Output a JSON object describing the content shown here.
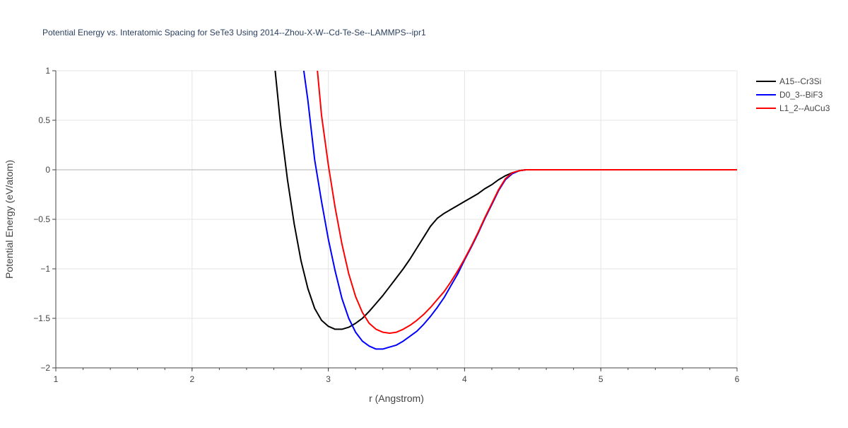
{
  "chart_data": {
    "type": "line",
    "title": "Potential Energy vs. Interatomic Spacing for SeTe3 Using 2014--Zhou-X-W--Cd-Te-Se--LAMMPS--ipr1",
    "xlabel": "r (Angstrom)",
    "ylabel": "Potential Energy (eV/atom)",
    "xlim": [
      1,
      6
    ],
    "ylim": [
      -2,
      1
    ],
    "x_ticks": [
      "1",
      "2",
      "3",
      "4",
      "5",
      "6"
    ],
    "y_ticks": [
      "1",
      "0.5",
      "0",
      "−0.5",
      "−1",
      "−1.5",
      "−2"
    ],
    "grid": true,
    "legend_position": "top-right",
    "series": [
      {
        "name": "A15--Cr3Si",
        "color": "#000000",
        "x": [
          2.61,
          2.65,
          2.7,
          2.75,
          2.8,
          2.85,
          2.9,
          2.95,
          3.0,
          3.05,
          3.1,
          3.15,
          3.2,
          3.25,
          3.3,
          3.35,
          3.4,
          3.45,
          3.5,
          3.55,
          3.6,
          3.65,
          3.7,
          3.75,
          3.8,
          3.85,
          3.9,
          3.95,
          4.0,
          4.05,
          4.1,
          4.15,
          4.2,
          4.25,
          4.3,
          4.35,
          4.4,
          4.45,
          4.5,
          5.0,
          5.5,
          6.0
        ],
        "y": [
          1.0,
          0.45,
          -0.1,
          -0.55,
          -0.92,
          -1.2,
          -1.4,
          -1.52,
          -1.58,
          -1.61,
          -1.61,
          -1.59,
          -1.55,
          -1.5,
          -1.43,
          -1.35,
          -1.27,
          -1.18,
          -1.09,
          -1.0,
          -0.9,
          -0.79,
          -0.68,
          -0.57,
          -0.49,
          -0.44,
          -0.4,
          -0.36,
          -0.32,
          -0.28,
          -0.24,
          -0.19,
          -0.15,
          -0.1,
          -0.06,
          -0.03,
          -0.01,
          0.0,
          0.0,
          0.0,
          0.0,
          0.0
        ]
      },
      {
        "name": "D0_3--BiF3",
        "color": "#0000ff",
        "x": [
          2.82,
          2.85,
          2.9,
          2.95,
          3.0,
          3.05,
          3.1,
          3.15,
          3.2,
          3.25,
          3.3,
          3.35,
          3.4,
          3.45,
          3.5,
          3.55,
          3.6,
          3.65,
          3.7,
          3.75,
          3.8,
          3.85,
          3.9,
          3.95,
          4.0,
          4.05,
          4.1,
          4.15,
          4.2,
          4.25,
          4.3,
          4.35,
          4.4,
          4.45,
          4.5,
          5.0,
          5.5,
          6.0
        ],
        "y": [
          1.0,
          0.7,
          0.1,
          -0.32,
          -0.7,
          -1.02,
          -1.3,
          -1.5,
          -1.64,
          -1.73,
          -1.78,
          -1.81,
          -1.81,
          -1.79,
          -1.77,
          -1.73,
          -1.68,
          -1.63,
          -1.56,
          -1.48,
          -1.39,
          -1.29,
          -1.17,
          -1.05,
          -0.91,
          -0.78,
          -0.64,
          -0.49,
          -0.35,
          -0.21,
          -0.1,
          -0.04,
          -0.01,
          0.0,
          0.0,
          0.0,
          0.0,
          0.0
        ]
      },
      {
        "name": "L1_2--AuCu3",
        "color": "#ff0000",
        "x": [
          2.92,
          2.95,
          3.0,
          3.05,
          3.1,
          3.15,
          3.2,
          3.25,
          3.3,
          3.35,
          3.4,
          3.45,
          3.5,
          3.55,
          3.6,
          3.65,
          3.7,
          3.75,
          3.8,
          3.85,
          3.9,
          3.95,
          4.0,
          4.05,
          4.1,
          4.15,
          4.2,
          4.25,
          4.3,
          4.35,
          4.4,
          4.45,
          4.5,
          5.0,
          5.5,
          6.0
        ],
        "y": [
          1.0,
          0.55,
          0.05,
          -0.38,
          -0.75,
          -1.05,
          -1.28,
          -1.44,
          -1.55,
          -1.61,
          -1.64,
          -1.65,
          -1.64,
          -1.61,
          -1.57,
          -1.52,
          -1.46,
          -1.39,
          -1.31,
          -1.23,
          -1.13,
          -1.02,
          -0.9,
          -0.77,
          -0.63,
          -0.48,
          -0.34,
          -0.2,
          -0.09,
          -0.03,
          -0.01,
          0.0,
          0.0,
          0.0,
          0.0,
          0.0
        ]
      }
    ]
  }
}
